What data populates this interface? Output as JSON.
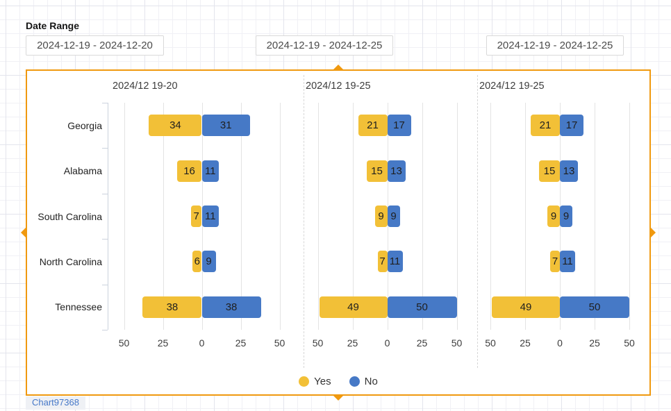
{
  "header": {
    "date_range_label": "Date Range",
    "date_inputs": [
      "2024-12-19 - 2024-12-20",
      "2024-12-19 - 2024-12-25",
      "2024-12-19 - 2024-12-25"
    ]
  },
  "widget": {
    "name_tag": "Chart97368"
  },
  "colors": {
    "selection_orange": "#f0990f",
    "yes_yellow": "#f2c037",
    "no_blue": "#4679c6"
  },
  "chart_data": [
    {
      "type": "bar",
      "orientation": "horizontal-diverging",
      "title": "2024/12 19-20",
      "categories": [
        "Georgia",
        "Alabama",
        "South Carolina",
        "North Carolina",
        "Tennessee"
      ],
      "series": [
        {
          "name": "Yes",
          "color": "#f2c037",
          "values": [
            34,
            16,
            7,
            6,
            38
          ]
        },
        {
          "name": "No",
          "color": "#4679c6",
          "values": [
            31,
            11,
            11,
            9,
            38
          ]
        }
      ],
      "xticks": [
        "50",
        "25",
        "0",
        "25",
        "50"
      ],
      "xlim": [
        -50,
        50
      ],
      "value_labels": true,
      "grid": true,
      "legend_position": "bottom"
    },
    {
      "type": "bar",
      "orientation": "horizontal-diverging",
      "title": "2024/12 19-25",
      "categories": [
        "Georgia",
        "Alabama",
        "South Carolina",
        "North Carolina",
        "Tennessee"
      ],
      "series": [
        {
          "name": "Yes",
          "color": "#f2c037",
          "values": [
            21,
            15,
            9,
            7,
            49
          ]
        },
        {
          "name": "No",
          "color": "#4679c6",
          "values": [
            17,
            13,
            9,
            11,
            50
          ]
        }
      ],
      "xticks": [
        "50",
        "25",
        "0",
        "25",
        "50"
      ],
      "xlim": [
        -50,
        50
      ],
      "value_labels": true,
      "grid": true
    },
    {
      "type": "bar",
      "orientation": "horizontal-diverging",
      "title": "2024/12 19-25",
      "categories": [
        "Georgia",
        "Alabama",
        "South Carolina",
        "North Carolina",
        "Tennessee"
      ],
      "series": [
        {
          "name": "Yes",
          "color": "#f2c037",
          "values": [
            21,
            15,
            9,
            7,
            49
          ]
        },
        {
          "name": "No",
          "color": "#4679c6",
          "values": [
            17,
            13,
            9,
            11,
            50
          ]
        }
      ],
      "xticks": [
        "50",
        "25",
        "0",
        "25",
        "50"
      ],
      "xlim": [
        -50,
        50
      ],
      "value_labels": true,
      "grid": true
    }
  ]
}
